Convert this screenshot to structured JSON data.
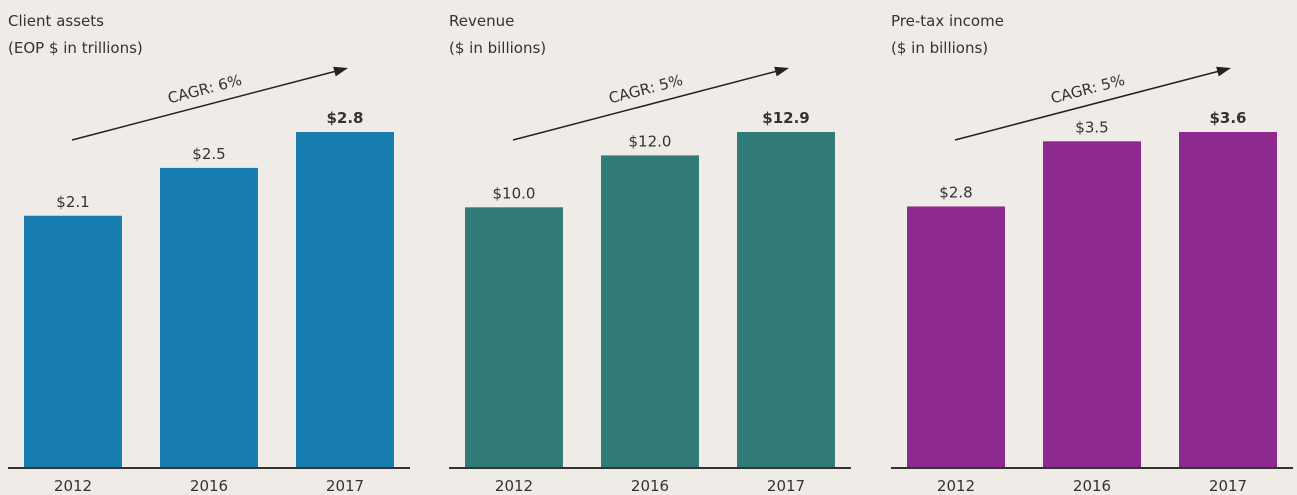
{
  "chart_data": [
    {
      "type": "bar",
      "title": "Client assets",
      "subtitle": "(EOP $ in trillions)",
      "annotation": "CAGR: 6%",
      "categories": [
        "2012",
        "2016",
        "2017"
      ],
      "values": [
        2.1,
        2.5,
        2.8
      ],
      "value_labels": [
        "$2.1",
        "$2.5",
        "$2.8"
      ],
      "color": "#1a7db0",
      "ylim": [
        0,
        2.8
      ]
    },
    {
      "type": "bar",
      "title": "Revenue",
      "subtitle": "($ in billions)",
      "annotation": "CAGR: 5%",
      "categories": [
        "2012",
        "2016",
        "2017"
      ],
      "values": [
        10.0,
        12.0,
        12.9
      ],
      "value_labels": [
        "$10.0",
        "$12.0",
        "$12.9"
      ],
      "color": "#317c78",
      "ylim": [
        0,
        12.9
      ]
    },
    {
      "type": "bar",
      "title": "Pre-tax income",
      "subtitle": "($ in billions)",
      "annotation": "CAGR: 5%",
      "categories": [
        "2012",
        "2016",
        "2017"
      ],
      "values": [
        2.8,
        3.5,
        3.6
      ],
      "value_labels": [
        "$2.8",
        "$3.5",
        "$3.6"
      ],
      "color": "#8e2a8f",
      "ylim": [
        0,
        3.6
      ]
    }
  ]
}
